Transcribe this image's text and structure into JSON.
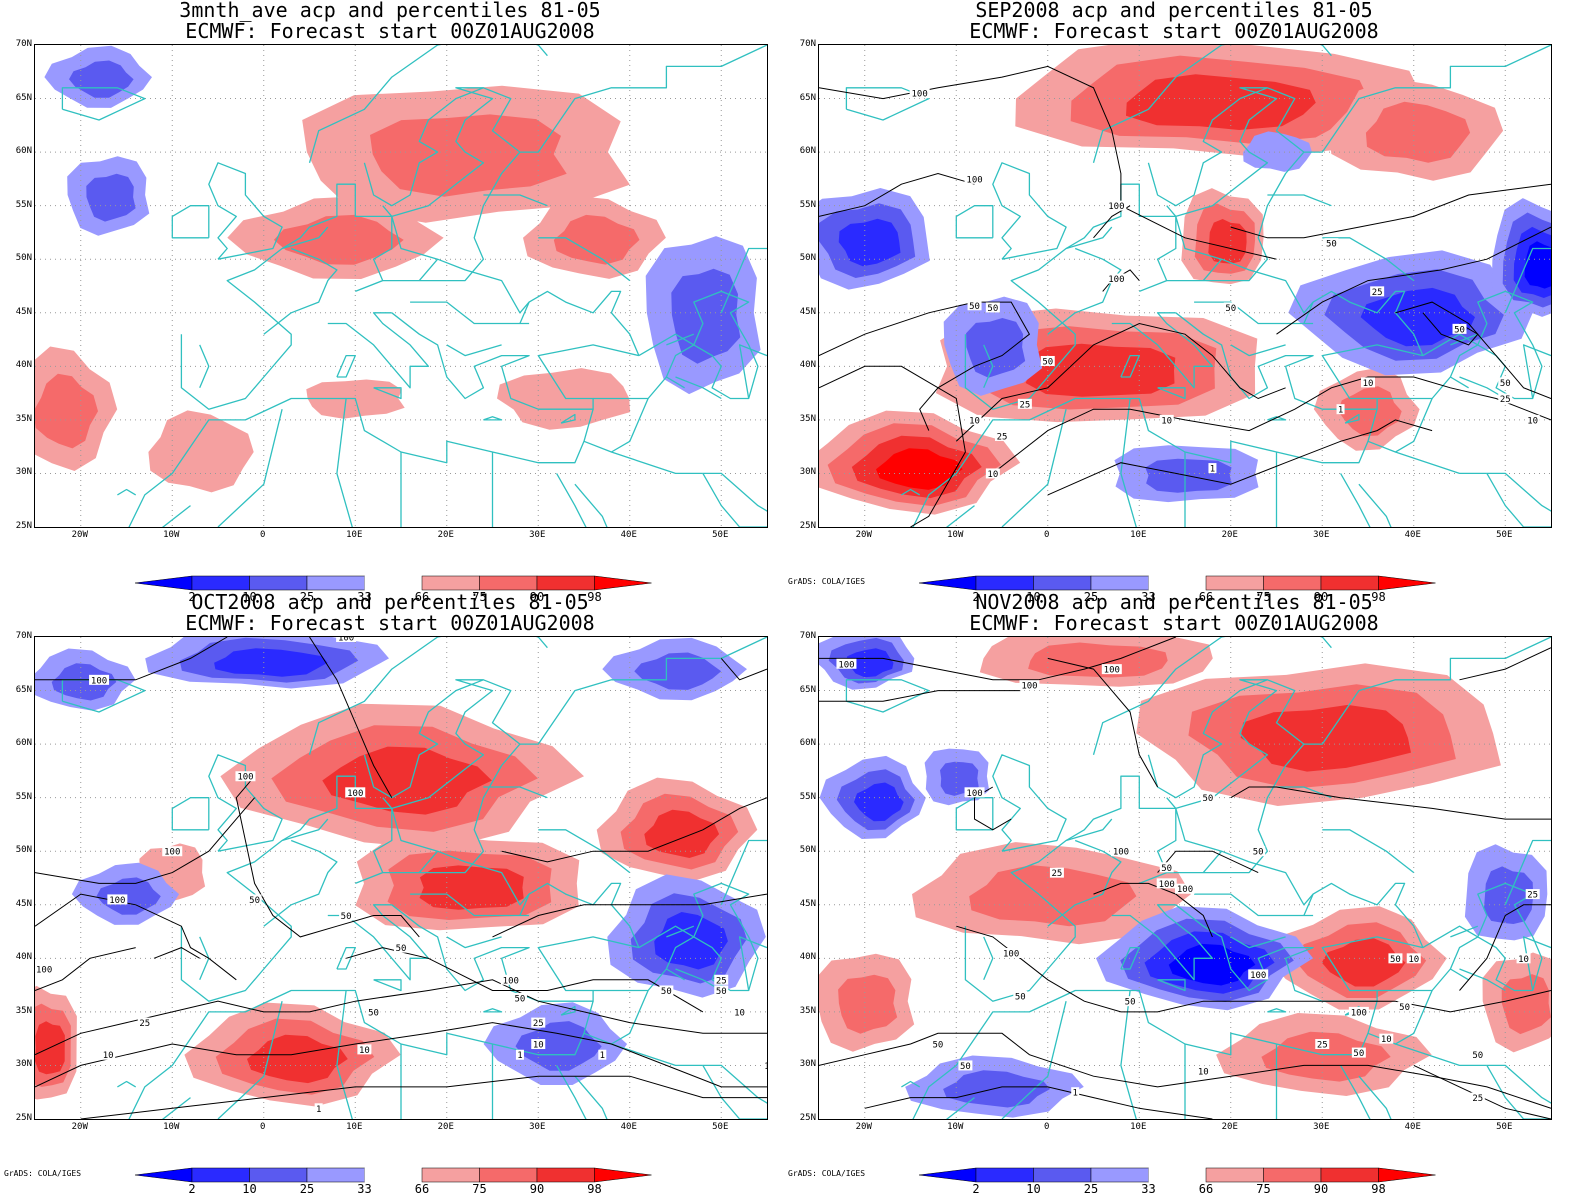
{
  "panels": [
    {
      "title_line1": "3mnth_ave acp and percentiles 81-05",
      "title_line2": "ECMWF: Forecast start 00Z01AUG2008",
      "credit": ""
    },
    {
      "title_line1": "SEP2008 acp and percentiles 81-05",
      "title_line2": "ECMWF: Forecast start 00Z01AUG2008",
      "credit": "GrADS: COLA/IGES"
    },
    {
      "title_line1": "OCT2008 acp and percentiles 81-05",
      "title_line2": "ECMWF: Forecast start 00Z01AUG2008",
      "credit": "GrADS: COLA/IGES"
    },
    {
      "title_line1": "NOV2008 acp and percentiles 81-05",
      "title_line2": "ECMWF: Forecast start 00Z01AUG2008",
      "credit": "GrADS: COLA/IGES"
    }
  ],
  "lat_labels": [
    "70N",
    "65N",
    "60N",
    "55N",
    "50N",
    "45N",
    "40N",
    "35N",
    "30N",
    "25N"
  ],
  "lon_labels": [
    "20W",
    "10W",
    "0",
    "10E",
    "20E",
    "30E",
    "40E",
    "50E"
  ],
  "colorbar": {
    "labels": [
      "2",
      "10",
      "25",
      "33",
      "66",
      "75",
      "90",
      "98"
    ],
    "colors": {
      "lt2": "#0000ff",
      "p2_10": "#2a2aff",
      "p10_25": "#5a5af0",
      "p25_33": "#9999ff",
      "p66_75": "#f5a0a0",
      "p75_90": "#f56a6a",
      "p90_98": "#f03030",
      "gt98": "#ff0000"
    }
  },
  "map_colors": {
    "coastline": "#30c0c0",
    "contour": "#000000",
    "grid": "#999999"
  },
  "contour_labels": {
    "sep": [
      "100",
      "100",
      "100",
      "100",
      "50",
      "50",
      "50",
      "50",
      "25",
      "10",
      "10",
      "10",
      "25",
      "50",
      "50",
      "25",
      "50",
      "25",
      "10",
      "1",
      "10",
      "1"
    ],
    "oct": [
      "100",
      "100",
      "100",
      "100",
      "50",
      "100",
      "100",
      "100",
      "50",
      "50",
      "100",
      "50",
      "50",
      "50",
      "25",
      "50",
      "25",
      "10",
      "10",
      "10",
      "1",
      "1",
      "1",
      "25",
      "10",
      "1"
    ],
    "nov": [
      "100",
      "100",
      "100",
      "100",
      "100",
      "50",
      "50",
      "100",
      "50",
      "100",
      "100",
      "50",
      "50",
      "100",
      "50",
      "50",
      "25",
      "50",
      "10",
      "25",
      "50",
      "50",
      "100",
      "10",
      "25",
      "50",
      "25",
      "10",
      "1",
      "10"
    ]
  }
}
